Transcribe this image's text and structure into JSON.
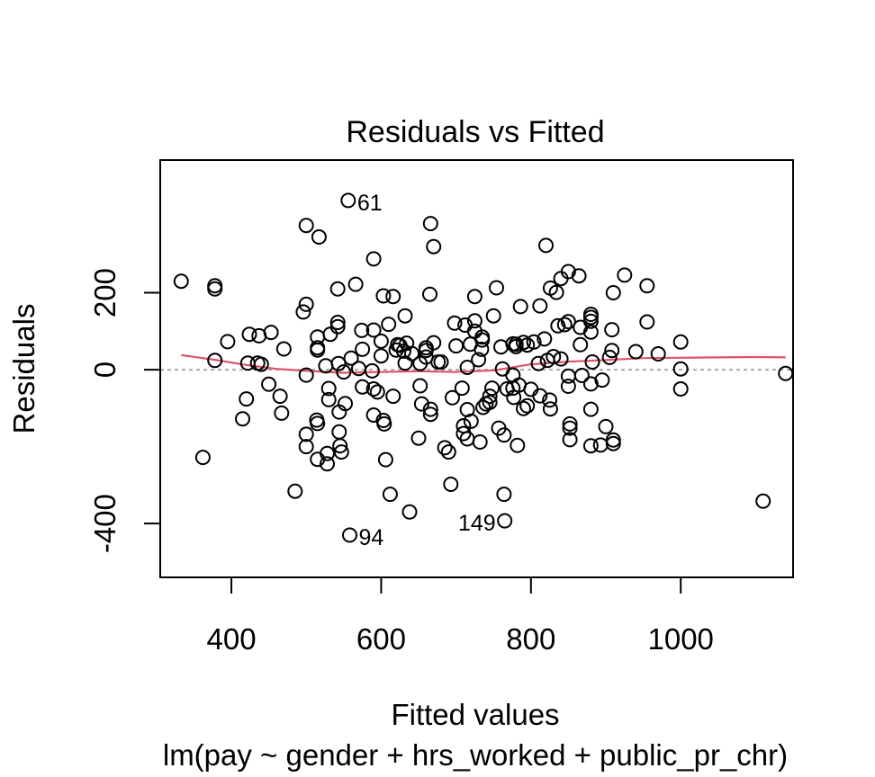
{
  "chart_data": {
    "type": "scatter",
    "title": "Residuals vs Fitted",
    "xlabel": "Fitted values",
    "ylabel": "Residuals",
    "subtitle": "lm(pay ~ gender + hrs_worked + public_pr_chr)",
    "xlim": [
      305,
      1150
    ],
    "ylim": [
      -540,
      545
    ],
    "xticks": [
      400,
      600,
      800,
      1000
    ],
    "yticks": [
      -400,
      0,
      200
    ],
    "xtick_labels": [
      "400",
      "600",
      "800",
      "1000"
    ],
    "ytick_labels": [
      "-400",
      "0",
      "200"
    ],
    "grid": false,
    "reference_line": {
      "y": 0,
      "color": "#aaaaaa",
      "dashed": true
    },
    "smooth_color": "#DF536B",
    "point_color": "#000000",
    "points": [
      [
        333,
        230
      ],
      [
        362,
        -228
      ],
      [
        378,
        210
      ],
      [
        378,
        218
      ],
      [
        378,
        24
      ],
      [
        395,
        73
      ],
      [
        415,
        -128
      ],
      [
        420,
        -76
      ],
      [
        422,
        17
      ],
      [
        424,
        92
      ],
      [
        435,
        17
      ],
      [
        437,
        88
      ],
      [
        440,
        14
      ],
      [
        450,
        -38
      ],
      [
        453,
        97
      ],
      [
        465,
        -69
      ],
      [
        467,
        -113
      ],
      [
        470,
        54
      ],
      [
        485,
        -316
      ],
      [
        496,
        150
      ],
      [
        500,
        375
      ],
      [
        500,
        170
      ],
      [
        500,
        -14
      ],
      [
        500,
        -200
      ],
      [
        500,
        -168
      ],
      [
        514,
        -131
      ],
      [
        515,
        85
      ],
      [
        515,
        57
      ],
      [
        515,
        51
      ],
      [
        515,
        -140
      ],
      [
        515,
        -233
      ],
      [
        517,
        345
      ],
      [
        526,
        10
      ],
      [
        528,
        -245
      ],
      [
        528,
        -218
      ],
      [
        530,
        -49
      ],
      [
        530,
        -78
      ],
      [
        532,
        92
      ],
      [
        542,
        210
      ],
      [
        542,
        112
      ],
      [
        542,
        123
      ],
      [
        543,
        16
      ],
      [
        544,
        -110
      ],
      [
        544,
        -162
      ],
      [
        545,
        -198
      ],
      [
        547,
        -214
      ],
      [
        550,
        -6
      ],
      [
        552,
        -88
      ],
      [
        556,
        440
      ],
      [
        558,
        -430
      ],
      [
        560,
        30
      ],
      [
        566,
        222
      ],
      [
        570,
        3
      ],
      [
        574,
        102
      ],
      [
        575,
        53
      ],
      [
        575,
        -45
      ],
      [
        588,
        -3
      ],
      [
        590,
        288
      ],
      [
        590,
        103
      ],
      [
        590,
        -118
      ],
      [
        590,
        -50
      ],
      [
        595,
        -58
      ],
      [
        600,
        74
      ],
      [
        600,
        36
      ],
      [
        603,
        192
      ],
      [
        603,
        -132
      ],
      [
        604,
        -141
      ],
      [
        606,
        -234
      ],
      [
        610,
        118
      ],
      [
        612,
        -324
      ],
      [
        616,
        190
      ],
      [
        616,
        -69
      ],
      [
        620,
        51
      ],
      [
        622,
        65
      ],
      [
        625,
        63
      ],
      [
        630,
        48
      ],
      [
        632,
        140
      ],
      [
        632,
        17
      ],
      [
        634,
        69
      ],
      [
        638,
        -370
      ],
      [
        641,
        42
      ],
      [
        650,
        -178
      ],
      [
        652,
        16
      ],
      [
        652,
        -42
      ],
      [
        654,
        -89
      ],
      [
        660,
        50
      ],
      [
        660,
        33
      ],
      [
        660,
        57
      ],
      [
        665,
        196
      ],
      [
        666,
        380
      ],
      [
        666,
        -103
      ],
      [
        666,
        -116
      ],
      [
        670,
        320
      ],
      [
        670,
        70
      ],
      [
        676,
        20
      ],
      [
        680,
        20
      ],
      [
        685,
        -203
      ],
      [
        690,
        -214
      ],
      [
        693,
        -298
      ],
      [
        695,
        -73
      ],
      [
        698,
        121
      ],
      [
        700,
        62
      ],
      [
        708,
        -48
      ],
      [
        710,
        -166
      ],
      [
        710,
        -146
      ],
      [
        712,
        116
      ],
      [
        715,
        -180
      ],
      [
        715,
        6
      ],
      [
        715,
        -104
      ],
      [
        719,
        66
      ],
      [
        720,
        -134
      ],
      [
        725,
        190
      ],
      [
        725,
        127
      ],
      [
        725,
        100
      ],
      [
        730,
        26
      ],
      [
        732,
        -188
      ],
      [
        734,
        53
      ],
      [
        735,
        77
      ],
      [
        735,
        85
      ],
      [
        736,
        -98
      ],
      [
        740,
        -89
      ],
      [
        745,
        -85
      ],
      [
        745,
        -69
      ],
      [
        748,
        -48
      ],
      [
        750,
        140
      ],
      [
        754,
        213
      ],
      [
        757,
        -152
      ],
      [
        760,
        59
      ],
      [
        762,
        2
      ],
      [
        764,
        -170
      ],
      [
        764,
        -324
      ],
      [
        765,
        -393
      ],
      [
        768,
        -50
      ],
      [
        776,
        67
      ],
      [
        776,
        -48
      ],
      [
        776,
        -14
      ],
      [
        777,
        -72
      ],
      [
        780,
        60
      ],
      [
        780,
        66
      ],
      [
        782,
        -197
      ],
      [
        784,
        -40
      ],
      [
        786,
        164
      ],
      [
        790,
        71
      ],
      [
        790,
        -101
      ],
      [
        795,
        -94
      ],
      [
        795,
        64
      ],
      [
        800,
        -51
      ],
      [
        804,
        72
      ],
      [
        810,
        16
      ],
      [
        812,
        166
      ],
      [
        812,
        -68
      ],
      [
        818,
        80
      ],
      [
        820,
        323
      ],
      [
        822,
        24
      ],
      [
        825,
        -79
      ],
      [
        826,
        212
      ],
      [
        826,
        -102
      ],
      [
        830,
        34
      ],
      [
        834,
        201
      ],
      [
        836,
        114
      ],
      [
        840,
        28
      ],
      [
        840,
        237
      ],
      [
        845,
        117
      ],
      [
        850,
        125
      ],
      [
        850,
        255
      ],
      [
        850,
        -17
      ],
      [
        850,
        -43
      ],
      [
        852,
        -141
      ],
      [
        852,
        -152
      ],
      [
        852,
        -182
      ],
      [
        864,
        244
      ],
      [
        866,
        65
      ],
      [
        866,
        110
      ],
      [
        868,
        -15
      ],
      [
        880,
        -198
      ],
      [
        880,
        98
      ],
      [
        880,
        126
      ],
      [
        880,
        136
      ],
      [
        880,
        144
      ],
      [
        880,
        -103
      ],
      [
        880,
        -37
      ],
      [
        882,
        20
      ],
      [
        893,
        -196
      ],
      [
        895,
        -27
      ],
      [
        900,
        -148
      ],
      [
        905,
        32
      ],
      [
        908,
        50
      ],
      [
        908,
        104
      ],
      [
        910,
        200
      ],
      [
        910,
        -183
      ],
      [
        910,
        -192
      ],
      [
        925,
        246
      ],
      [
        940,
        47
      ],
      [
        955,
        218
      ],
      [
        955,
        124
      ],
      [
        970,
        41
      ],
      [
        1000,
        72
      ],
      [
        1000,
        2
      ],
      [
        1000,
        -50
      ],
      [
        1110,
        -342
      ],
      [
        1140,
        -10
      ]
    ],
    "smooth_line": [
      [
        333,
        38
      ],
      [
        380,
        25
      ],
      [
        420,
        12
      ],
      [
        460,
        2
      ],
      [
        500,
        -3
      ],
      [
        550,
        -8
      ],
      [
        600,
        -6
      ],
      [
        650,
        -4
      ],
      [
        700,
        -6
      ],
      [
        750,
        -2
      ],
      [
        800,
        14
      ],
      [
        850,
        21
      ],
      [
        900,
        25
      ],
      [
        950,
        30
      ],
      [
        1000,
        31
      ],
      [
        1050,
        32
      ],
      [
        1100,
        33
      ],
      [
        1140,
        32
      ]
    ],
    "annotations": [
      {
        "text": "61",
        "x": 556,
        "y": 440,
        "position": "right"
      },
      {
        "text": "94",
        "x": 558,
        "y": -430,
        "position": "right"
      },
      {
        "text": "149",
        "x": 765,
        "y": -393,
        "position": "left"
      }
    ]
  }
}
